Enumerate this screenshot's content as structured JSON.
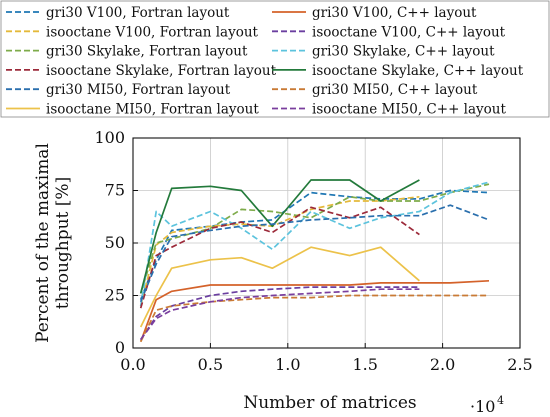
{
  "chart_data": {
    "type": "line",
    "title": "",
    "xlabel": "Number of matrices",
    "ylabel": "Percent of the maximal throughput [%]",
    "ylabel_lines": [
      "Percent of the maximal",
      "throughput [%]"
    ],
    "x_multiplier": "·10",
    "x_multiplier_exp": "4",
    "xlim": [
      0,
      2.5
    ],
    "ylim": [
      0,
      100
    ],
    "x_ticks": [
      0,
      0.5,
      1,
      1.5,
      2,
      2.5
    ],
    "x_tick_labels": [
      "0.0",
      "0.5",
      "1.0",
      "1.5",
      "2.0",
      "2.5"
    ],
    "y_ticks": [
      0,
      25,
      50,
      75,
      100
    ],
    "y_tick_labels": [
      "0",
      "25",
      "50",
      "75",
      "100"
    ],
    "grid": true,
    "legend_position": "top",
    "series": [
      {
        "name": "gri30 V100, Fortran layout",
        "color": "#1f77b4",
        "dash": "dashed",
        "x": [
          0.05,
          0.15,
          0.25,
          0.5,
          0.7,
          0.9,
          1.15,
          1.4,
          1.6,
          1.85,
          2.05,
          2.3
        ],
        "y": [
          23,
          42,
          56,
          58,
          60,
          61,
          74,
          72,
          71,
          71,
          75,
          74
        ]
      },
      {
        "name": "gri30 V100, C++ layout",
        "color": "#d4622a",
        "dash": "solid",
        "x": [
          0.05,
          0.15,
          0.25,
          0.5,
          0.7,
          0.9,
          1.15,
          1.4,
          1.6,
          1.85,
          2.05,
          2.3
        ],
        "y": [
          3,
          23,
          27,
          30,
          30,
          30,
          30,
          30,
          31,
          31,
          31,
          32
        ]
      },
      {
        "name": "isooctane V100, Fortran layout",
        "color": "#e4b93a",
        "dash": "dashed",
        "x": [
          0.05,
          0.15,
          0.25,
          0.5,
          0.7,
          0.9,
          1.15,
          1.4,
          1.6,
          1.85
        ],
        "y": [
          20,
          49,
          55,
          58,
          59,
          58,
          66,
          70,
          70,
          72
        ]
      },
      {
        "name": "isooctane V100, C++ layout",
        "color": "#6b3fa0",
        "dash": "dashed",
        "x": [
          0.05,
          0.15,
          0.25,
          0.5,
          0.7,
          0.9,
          1.15,
          1.4,
          1.6,
          1.85
        ],
        "y": [
          4,
          15,
          20,
          25,
          27,
          28,
          29,
          29,
          29,
          29
        ]
      },
      {
        "name": "gri30 Skylake, Fortran layout",
        "color": "#7eab4a",
        "dash": "dashed",
        "x": [
          0.05,
          0.15,
          0.25,
          0.5,
          0.7,
          0.9,
          1.15,
          1.4,
          1.6,
          1.85,
          2.05,
          2.3
        ],
        "y": [
          26,
          50,
          52,
          57,
          66,
          65,
          62,
          72,
          70,
          70,
          74,
          78
        ]
      },
      {
        "name": "gri30 Skylake, C++ layout",
        "color": "#5cc3dd",
        "dash": "dashed",
        "x": [
          0.05,
          0.15,
          0.25,
          0.5,
          0.7,
          0.9,
          1.15,
          1.4,
          1.6,
          1.85,
          2.05,
          2.3
        ],
        "y": [
          20,
          65,
          58,
          65,
          57,
          47,
          65,
          57,
          62,
          65,
          74,
          79
        ]
      },
      {
        "name": "isooctane Skylake, Fortran layout",
        "color": "#9c2a3a",
        "dash": "dashed",
        "x": [
          0.05,
          0.15,
          0.25,
          0.5,
          0.7,
          0.9,
          1.15,
          1.4,
          1.6,
          1.85
        ],
        "y": [
          19,
          44,
          48,
          57,
          60,
          55,
          67,
          62,
          67,
          54
        ]
      },
      {
        "name": "isooctane Skylake, C++ layout",
        "color": "#237a3b",
        "dash": "solid",
        "x": [
          0.05,
          0.15,
          0.25,
          0.5,
          0.7,
          0.9,
          1.15,
          1.4,
          1.6,
          1.85
        ],
        "y": [
          26,
          55,
          76,
          77,
          75,
          58,
          80,
          80,
          70,
          80
        ]
      },
      {
        "name": "gri30 MI50, Fortran layout",
        "color": "#2a6fad",
        "dash": "dashed",
        "x": [
          0.05,
          0.15,
          0.25,
          0.5,
          0.7,
          0.9,
          1.15,
          1.4,
          1.6,
          1.85,
          2.05,
          2.3
        ],
        "y": [
          22,
          40,
          53,
          56,
          58,
          59,
          61,
          62,
          63,
          63,
          68,
          61
        ]
      },
      {
        "name": "gri30 MI50, C++ layout",
        "color": "#c97a35",
        "dash": "dashed",
        "x": [
          0.05,
          0.15,
          0.25,
          0.5,
          0.7,
          0.9,
          1.15,
          1.4,
          1.6,
          1.85,
          2.05,
          2.3
        ],
        "y": [
          3,
          18,
          20,
          22,
          23,
          24,
          24,
          25,
          25,
          25,
          25,
          25
        ]
      },
      {
        "name": "isooctane MI50, Fortran layout",
        "color": "#ecc24a",
        "dash": "solid",
        "x": [
          0.05,
          0.15,
          0.25,
          0.5,
          0.7,
          0.9,
          1.15,
          1.4,
          1.6,
          1.85
        ],
        "y": [
          10,
          25,
          38,
          42,
          43,
          38,
          48,
          44,
          48,
          32
        ]
      },
      {
        "name": "isooctane MI50, C++ layout",
        "color": "#7a3e9d",
        "dash": "dashed",
        "x": [
          0.05,
          0.15,
          0.25,
          0.5,
          0.7,
          0.9,
          1.15,
          1.4,
          1.6,
          1.85
        ],
        "y": [
          4,
          14,
          18,
          22,
          24,
          25,
          26,
          27,
          28,
          28
        ]
      }
    ]
  }
}
